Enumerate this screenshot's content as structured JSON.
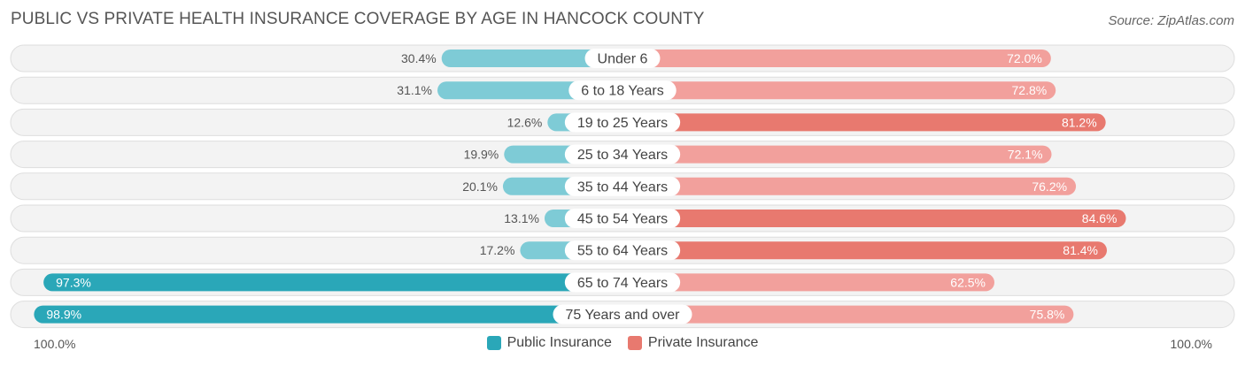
{
  "header": {
    "title": "PUBLIC VS PRIVATE HEALTH INSURANCE COVERAGE BY AGE IN HANCOCK COUNTY",
    "source": "Source: ZipAtlas.com"
  },
  "colors": {
    "public_light": "#7ecbd6",
    "public_dark": "#2aa7b8",
    "private_light": "#f2a09c",
    "private_dark": "#e8796f"
  },
  "chart_data": {
    "type": "bar",
    "orientation": "horizontal-diverging",
    "categories": [
      "Under 6",
      "6 to 18 Years",
      "19 to 25 Years",
      "25 to 34 Years",
      "35 to 44 Years",
      "45 to 54 Years",
      "55 to 64 Years",
      "65 to 74 Years",
      "75 Years and over"
    ],
    "series": [
      {
        "name": "Public Insurance",
        "values": [
          30.4,
          31.1,
          12.6,
          19.9,
          20.1,
          13.1,
          17.2,
          97.3,
          98.9
        ],
        "labels": [
          "30.4%",
          "31.1%",
          "12.6%",
          "19.9%",
          "20.1%",
          "13.1%",
          "17.2%",
          "97.3%",
          "98.9%"
        ]
      },
      {
        "name": "Private Insurance",
        "values": [
          72.0,
          72.8,
          81.2,
          72.1,
          76.2,
          84.6,
          81.4,
          62.5,
          75.8
        ],
        "labels": [
          "72.0%",
          "72.8%",
          "81.2%",
          "72.1%",
          "76.2%",
          "84.6%",
          "81.4%",
          "62.5%",
          "75.8%"
        ]
      }
    ],
    "xlim": [
      -100,
      100
    ],
    "axis_left_label": "100.0%",
    "axis_right_label": "100.0%",
    "legend_position": "bottom-center"
  }
}
